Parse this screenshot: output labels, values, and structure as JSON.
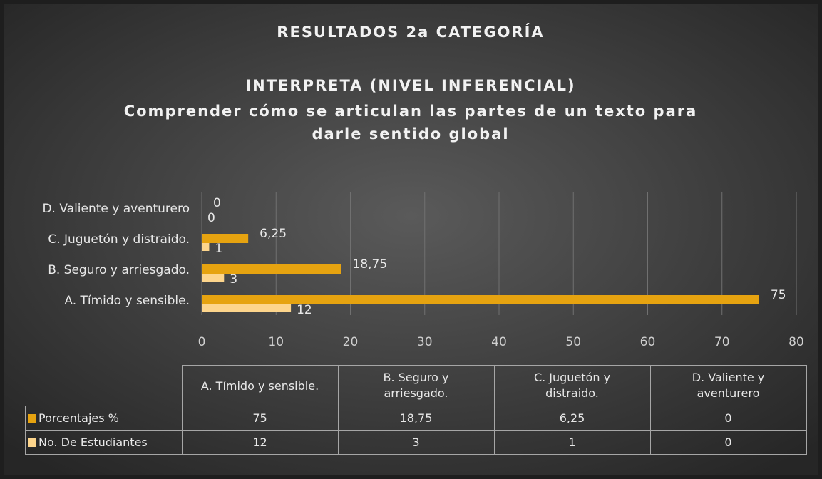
{
  "chart_data": {
    "type": "bar",
    "orientation": "horizontal",
    "title": "RESULTADOS 2a CATEGORÍA",
    "subtitle": [
      "INTERPRETA (NIVEL INFERENCIAL)",
      "Comprender cómo se articulan las partes de un texto para",
      "darle sentido global"
    ],
    "categories": [
      "A. Tímido y sensible.",
      "B. Seguro y arriesgado.",
      "C. Juguetón y distraido.",
      "D. Valiente y aventurero"
    ],
    "series": [
      {
        "name": "Porcentajes %",
        "color": "#e6a310",
        "values": [
          75,
          18.75,
          6.25,
          0
        ],
        "value_labels": [
          "75",
          "18,75",
          "6,25",
          "0"
        ]
      },
      {
        "name": "No. De Estudiantes",
        "color": "#fdd58c",
        "values": [
          12,
          3,
          1,
          0
        ]
      }
    ],
    "xlim": [
      0,
      80
    ],
    "xticks": [
      0,
      10,
      20,
      30,
      40,
      50,
      60,
      70,
      80
    ],
    "grid": true,
    "data_table": true
  }
}
